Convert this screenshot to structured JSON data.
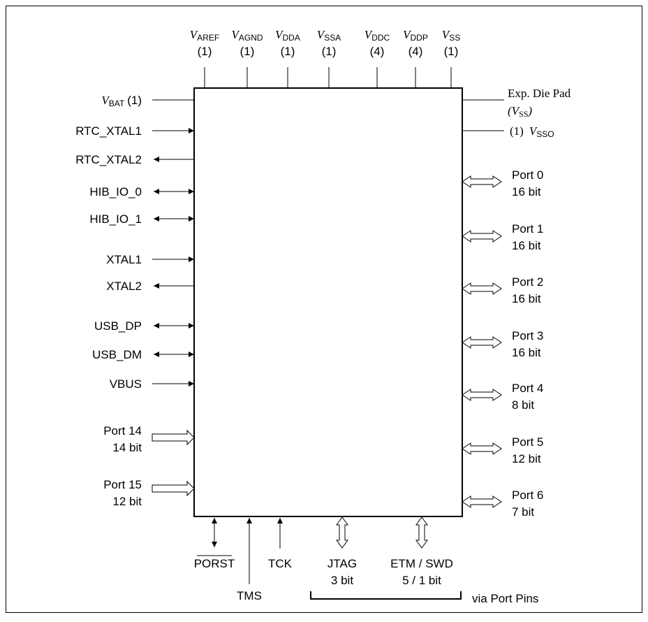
{
  "top_pins": [
    {
      "v": "V",
      "sub": "AREF",
      "count": "(1)"
    },
    {
      "v": "V",
      "sub": "AGND",
      "count": "(1)"
    },
    {
      "v": "V",
      "sub": "DDA",
      "count": "(1)"
    },
    {
      "v": "V",
      "sub": "SSA",
      "count": "(1)"
    },
    {
      "v": "V",
      "sub": "DDC",
      "count": "(4)"
    },
    {
      "v": "V",
      "sub": "DDP",
      "count": "(4)"
    },
    {
      "v": "V",
      "sub": "SS",
      "count": "(1)"
    }
  ],
  "left_pins": {
    "vbat": {
      "v": "V",
      "sub": "BAT",
      "count": "(1)"
    },
    "rtc_xtal1": "RTC_XTAL1",
    "rtc_xtal2": "RTC_XTAL2",
    "hib_io_0": "HIB_IO_0",
    "hib_io_1": "HIB_IO_1",
    "xtal1": "XTAL1",
    "xtal2": "XTAL2",
    "usb_dp": "USB_DP",
    "usb_dm": "USB_DM",
    "vbus": "VBUS",
    "port14": {
      "name": "Port 14",
      "width": "14 bit"
    },
    "port15": {
      "name": "Port 15",
      "width": "12 bit"
    }
  },
  "right_pins": {
    "exp_die_pad": {
      "line1": "Exp. Die Pad",
      "v": "V",
      "sub": "SS"
    },
    "vsso": {
      "count": "(1)",
      "v": "V",
      "sub": "SSO"
    },
    "ports": [
      {
        "name": "Port 0",
        "width": "16 bit"
      },
      {
        "name": "Port 1",
        "width": "16 bit"
      },
      {
        "name": "Port 2",
        "width": "16 bit"
      },
      {
        "name": "Port 3",
        "width": "16 bit"
      },
      {
        "name": "Port 4",
        "width": "8 bit"
      },
      {
        "name": "Port 5",
        "width": "12 bit"
      },
      {
        "name": "Port 6",
        "width": "7 bit"
      }
    ]
  },
  "bottom_pins": {
    "porst": "PORST",
    "tms": "TMS",
    "tck": "TCK",
    "jtag": {
      "name": "JTAG",
      "width": "3 bit"
    },
    "etm_swd": {
      "name": "ETM / SWD",
      "width": "5 / 1 bit"
    },
    "via_port_pins": "via Port Pins"
  }
}
